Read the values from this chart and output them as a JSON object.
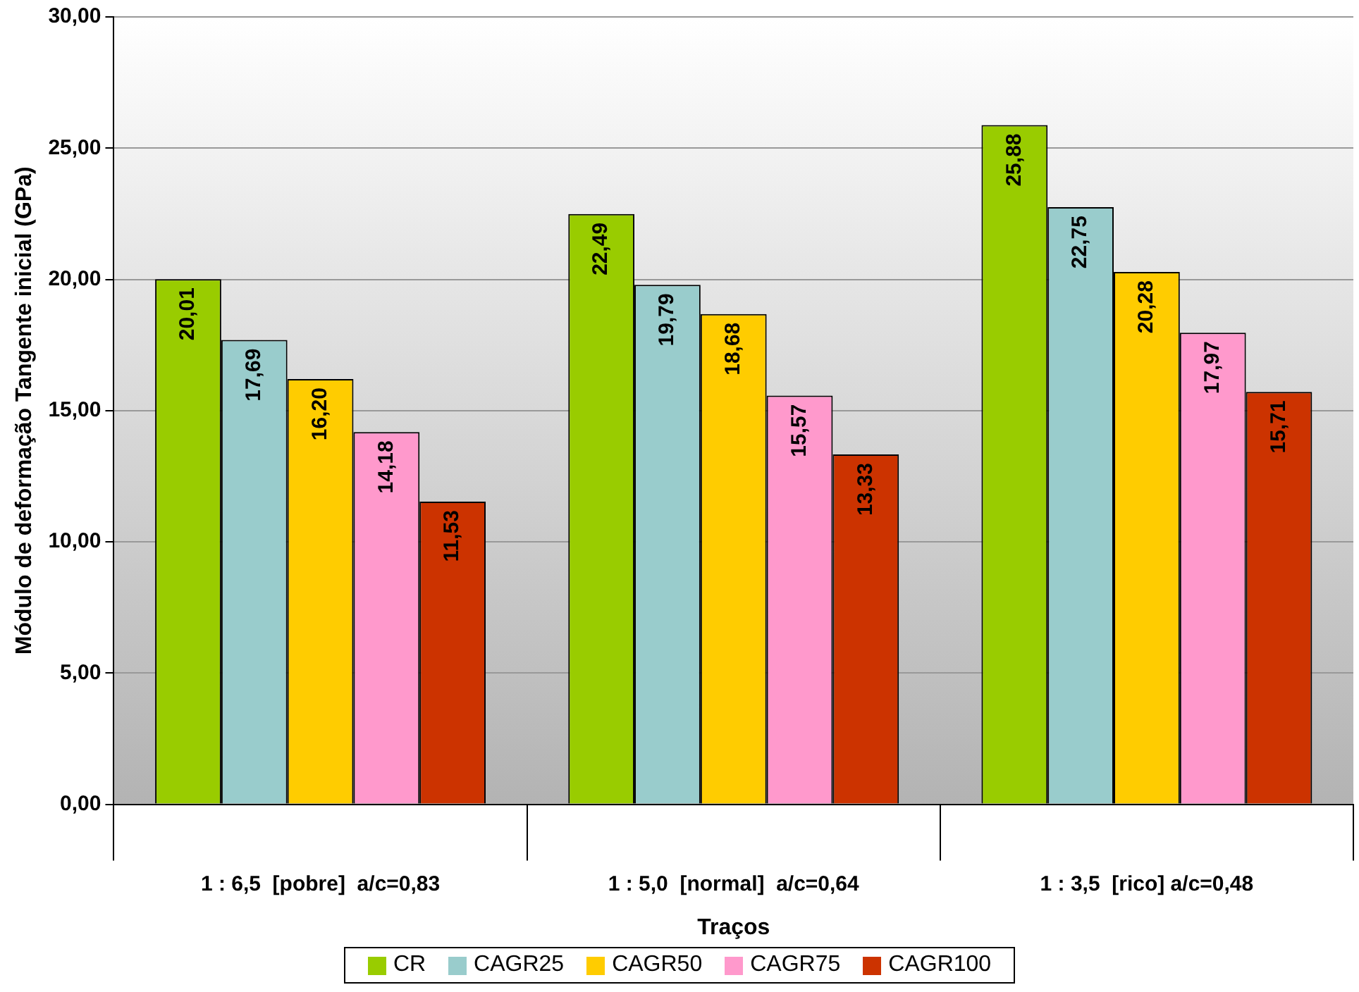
{
  "chart_data": {
    "type": "bar",
    "xlabel": "Traços",
    "ylabel": "Módulo de deformação Tangente inicial (GPa)",
    "categories": [
      "1 : 6,5  [pobre]  a/c=0,83",
      "1 : 5,0  [normal]  a/c=0,64",
      "1 : 3,5  [rico] a/c=0,48"
    ],
    "series": [
      {
        "name": "CR",
        "color": "#99cc00",
        "values": [
          20.01,
          22.49,
          25.88
        ],
        "value_labels": [
          "20,01",
          "22,49",
          "25,88"
        ]
      },
      {
        "name": "CAGR25",
        "color": "#99cccc",
        "values": [
          17.69,
          19.79,
          22.75
        ],
        "value_labels": [
          "17,69",
          "19,79",
          "22,75"
        ]
      },
      {
        "name": "CAGR50",
        "color": "#ffcc00",
        "values": [
          16.2,
          18.68,
          20.28
        ],
        "value_labels": [
          "16,20",
          "18,68",
          "20,28"
        ]
      },
      {
        "name": "CAGR75",
        "color": "#ff99cc",
        "values": [
          14.18,
          15.57,
          17.97
        ],
        "value_labels": [
          "14,18",
          "15,57",
          "17,97"
        ]
      },
      {
        "name": "CAGR100",
        "color": "#cc3300",
        "values": [
          11.53,
          13.33,
          15.71
        ],
        "value_labels": [
          "11,53",
          "13,33",
          "15,71"
        ]
      }
    ],
    "ylim": [
      0,
      30
    ],
    "yticks": [
      {
        "value": 0,
        "label": "0,00"
      },
      {
        "value": 5,
        "label": "5,00"
      },
      {
        "value": 10,
        "label": "10,00"
      },
      {
        "value": 15,
        "label": "15,00"
      },
      {
        "value": 20,
        "label": "20,00"
      },
      {
        "value": 25,
        "label": "25,00"
      },
      {
        "value": 30,
        "label": "30,00"
      }
    ],
    "grid": "y",
    "legend": "bottom"
  }
}
